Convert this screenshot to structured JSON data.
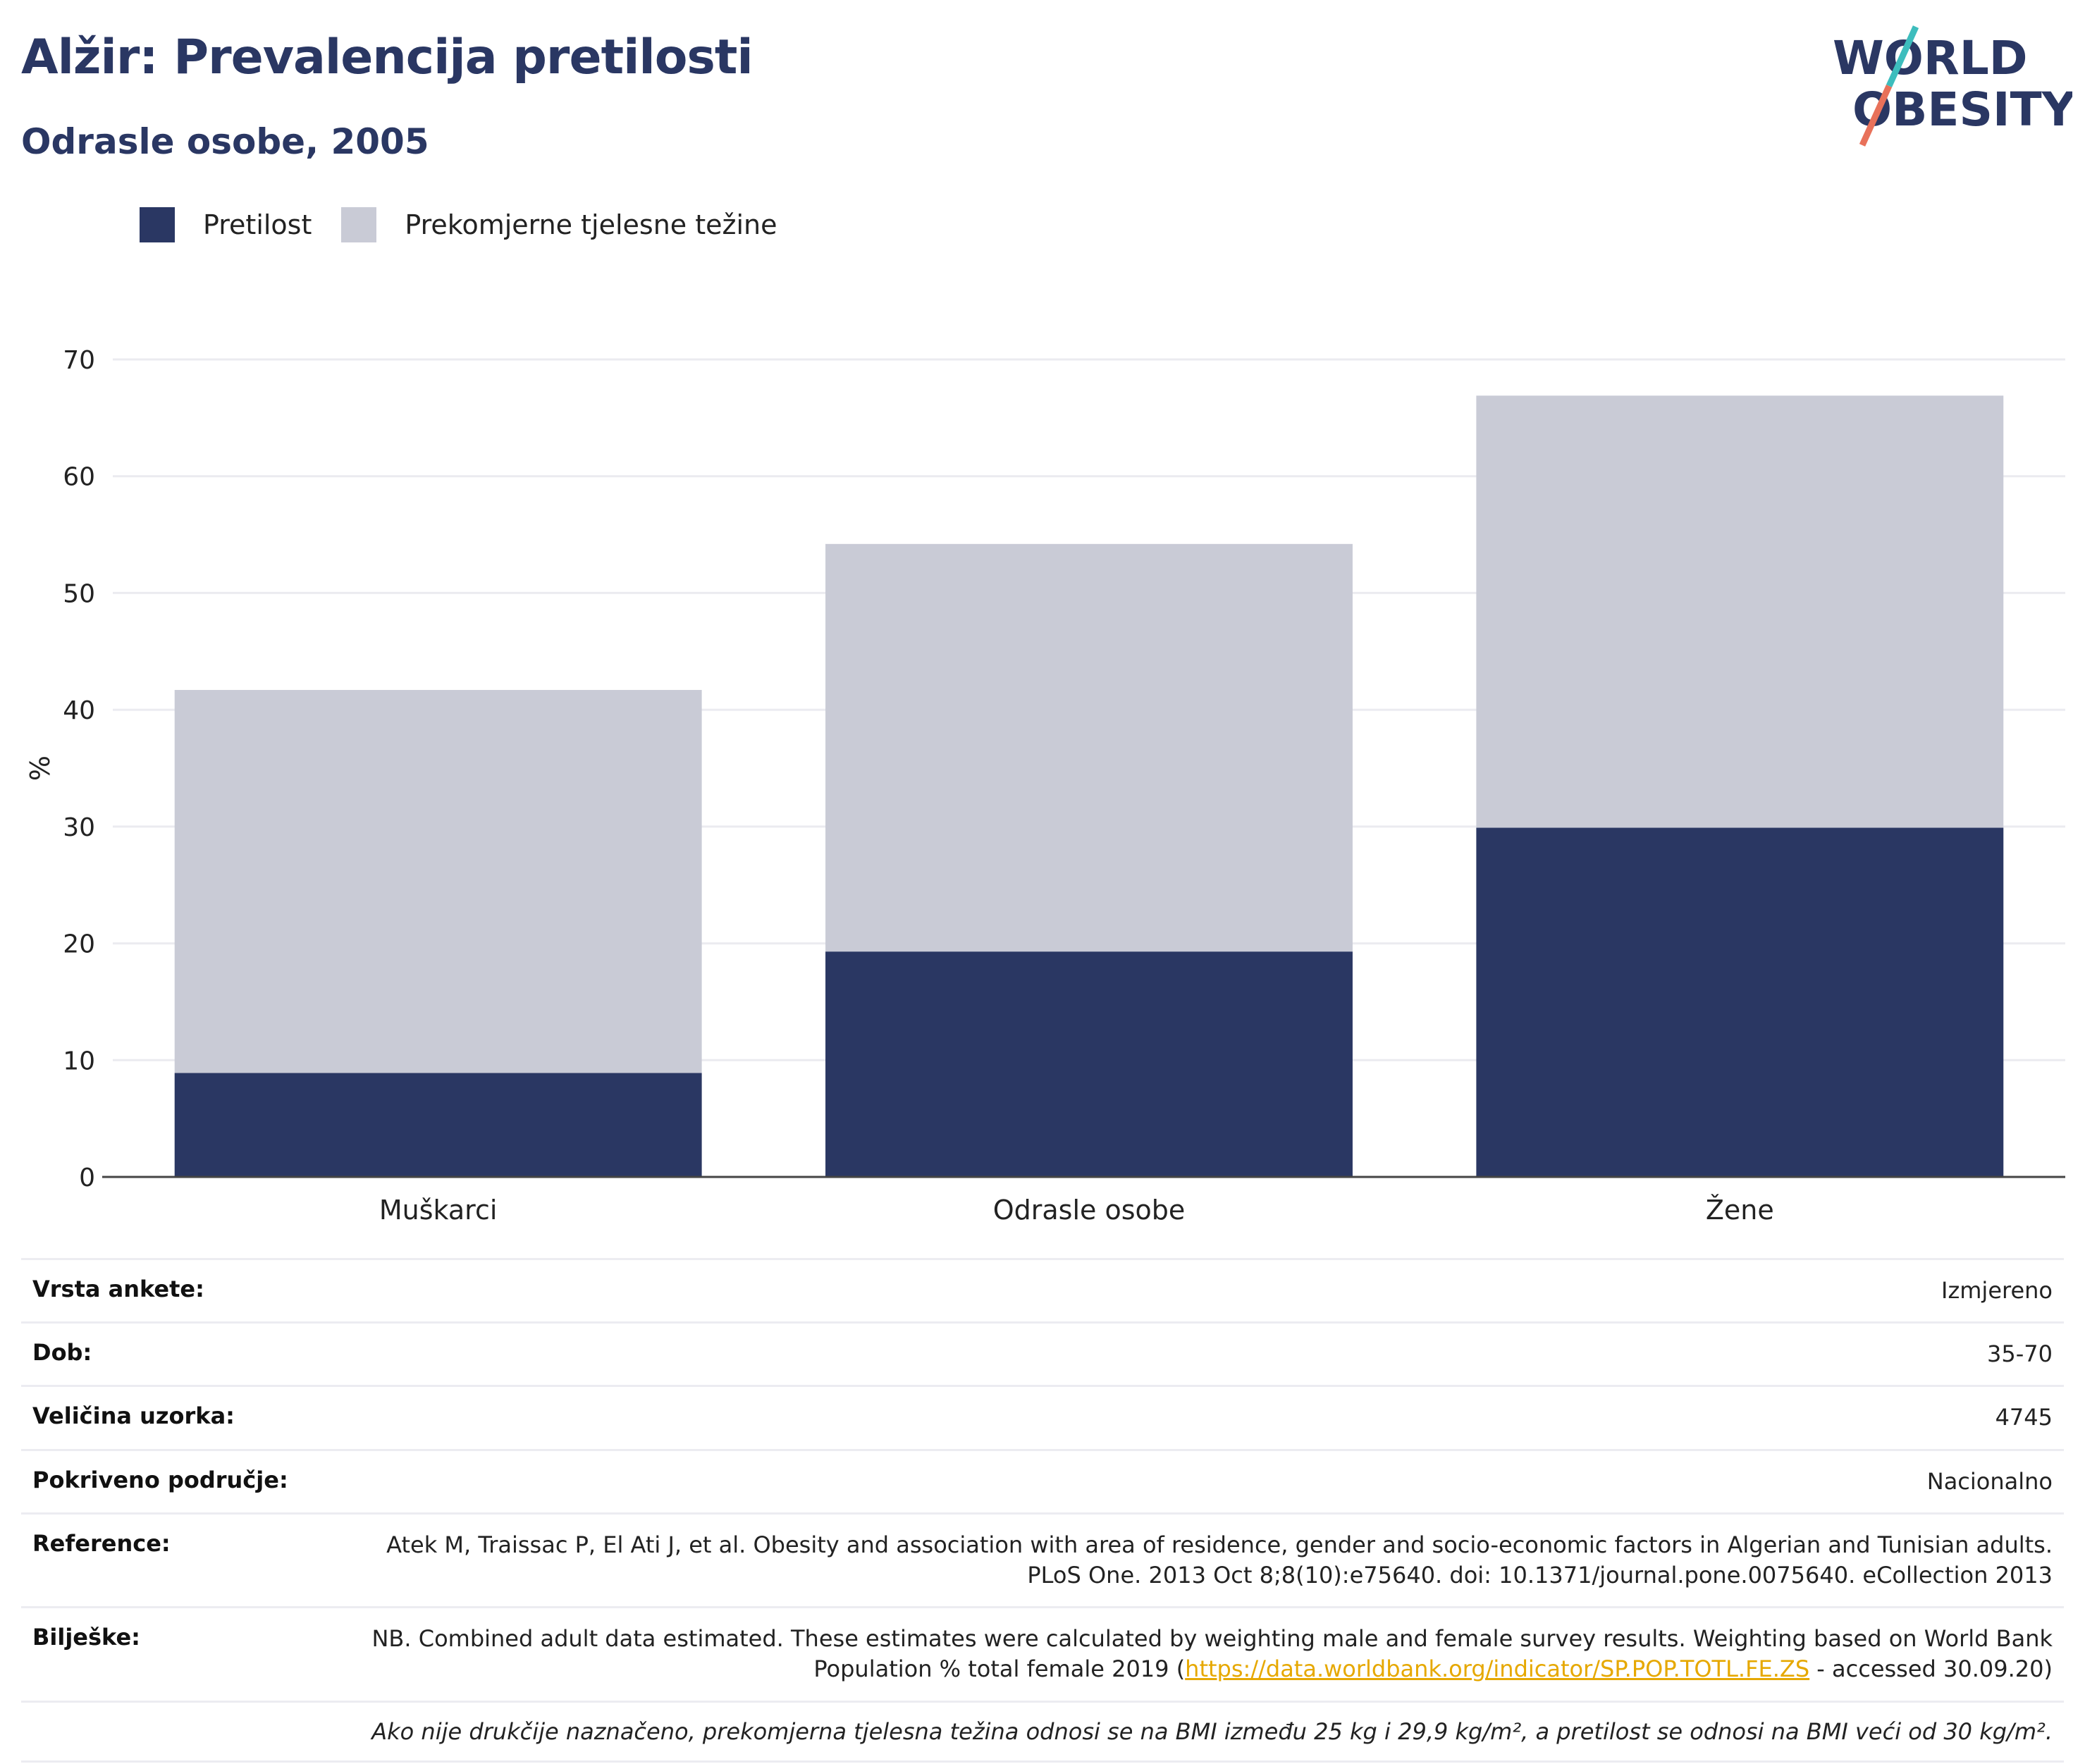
{
  "header": {
    "title": "Alžir: Prevalencija pretilosti",
    "subtitle": "Odrasle osobe, 2005"
  },
  "logo": {
    "line1": "WORLD",
    "line2": "OBESITY",
    "colors": {
      "text": "#2a3763",
      "slash_teal": "#3dbdbd",
      "slash_coral": "#e8715a"
    }
  },
  "legend": {
    "items": [
      {
        "label": "Pretilost",
        "color": "#2a3763"
      },
      {
        "label": "Prekomjerne tjelesne težine",
        "color": "#c9cbd6"
      }
    ]
  },
  "chart_data": {
    "type": "bar",
    "stacked": true,
    "categories": [
      "Muškarci",
      "Odrasle osobe",
      "Žene"
    ],
    "series": [
      {
        "name": "Pretilost",
        "values": [
          8.9,
          19.3,
          29.9
        ],
        "color": "#2a3763"
      },
      {
        "name": "Prekomjerne tjelesne težine",
        "values": [
          32.8,
          34.9,
          37.0
        ],
        "color": "#c9cbd6"
      }
    ],
    "ylabel": "%",
    "xlabel": "",
    "ylim": [
      0,
      70
    ],
    "yticks": [
      0,
      10,
      20,
      30,
      40,
      50,
      60,
      70
    ],
    "grid": true,
    "legend_position": "top-left"
  },
  "meta": {
    "rows": [
      {
        "key": "Vrsta ankete:",
        "value": "Izmjereno"
      },
      {
        "key": "Dob:",
        "value": "35-70"
      },
      {
        "key": "Veličina uzorka:",
        "value": "4745"
      },
      {
        "key": "Pokriveno područje:",
        "value": "Nacionalno"
      },
      {
        "key": "Reference:",
        "value": "Atek M, Traissac P, El Ati J, et al. Obesity and association with area of residence, gender and socio-economic factors in Algerian and Tunisian adults. PLoS One. 2013 Oct 8;8(10):e75640. doi: 10.1371/journal.pone.0075640. eCollection 2013"
      }
    ],
    "notes": {
      "key": "Bilješke:",
      "text_before": "NB. Combined adult data estimated. These estimates were calculated by weighting male and female survey results. Weighting based on World Bank Population % total female 2019 (",
      "link": "https://data.worldbank.org/indicator/SP.POP.TOTL.FE.ZS",
      "text_after": " - accessed 30.09.20)"
    },
    "footnote": "Ako nije drukčije naznačeno, prekomjerna tjelesna težina odnosi se na BMI između 25 kg i 29,9 kg/m², a pretilost se odnosi na BMI veći od 30 kg/m²."
  }
}
